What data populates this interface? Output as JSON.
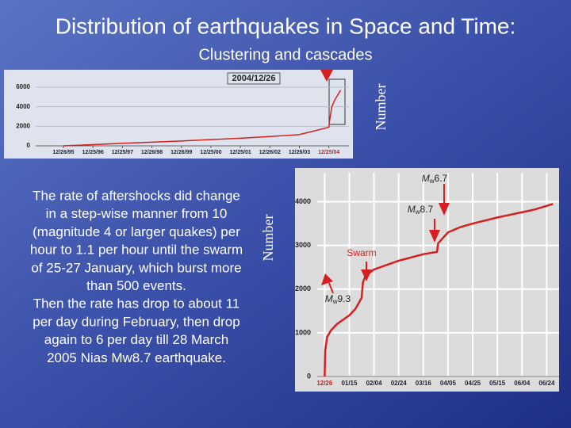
{
  "slide": {
    "title": "Distribution of earthquakes in Space and Time:",
    "subtitle": "Clustering and cascades",
    "body": [
      "The rate of aftershocks did change",
      "in a step-wise manner from 10",
      "(magnitude 4 or larger quakes) per",
      "hour to 1.1 per hour until the swarm",
      "of 25-27 January, which burst more",
      "than 500 events.",
      "Then the rate has drop to about 11",
      "per day during February, then drop",
      "again to 6 per day till 28 March",
      "2005 Nias Mw8.7 earthquake."
    ]
  },
  "chart_data": [
    {
      "type": "line",
      "y_label": "Number",
      "annotation": "2004/12/26",
      "color": "#d42020",
      "x": [
        0,
        1,
        2,
        3,
        4,
        5,
        6,
        7,
        8,
        9,
        9.02,
        9.1,
        9.2,
        9.4
      ],
      "series": [
        {
          "values": [
            0,
            120,
            260,
            380,
            500,
            640,
            780,
            950,
            1150,
            1900,
            2500,
            4000,
            4700,
            5700
          ]
        }
      ],
      "xlim": [
        -0.94,
        9.68
      ],
      "ylim": [
        0,
        6000
      ],
      "xticks": [
        {
          "value": 0,
          "label": "12/26/95"
        },
        {
          "value": 1,
          "label": "12/25/96"
        },
        {
          "value": 2,
          "label": "12/25/97"
        },
        {
          "value": 3,
          "label": "12/26/98"
        },
        {
          "value": 4,
          "label": "12/26/99"
        },
        {
          "value": 5,
          "label": "12/25/00"
        },
        {
          "value": 6,
          "label": "12/25/01"
        },
        {
          "value": 7,
          "label": "12/26/02"
        },
        {
          "value": 8,
          "label": "12/26/03"
        },
        {
          "value": 9,
          "label": "12/25/04"
        }
      ],
      "highlight_tick_color": "#d42020",
      "yticks": [
        0,
        2000,
        4000,
        6000
      ],
      "grid": true
    },
    {
      "type": "line",
      "y_label": "Number",
      "color": "#d42020",
      "x": [
        0,
        0.5,
        2,
        5,
        10,
        15,
        20,
        25,
        30,
        31,
        33,
        40,
        60,
        80,
        91,
        92,
        100,
        110,
        120,
        140,
        160,
        170,
        185
      ],
      "series": [
        {
          "values": [
            0,
            600,
            900,
            1050,
            1200,
            1300,
            1400,
            1550,
            1800,
            2150,
            2300,
            2450,
            2650,
            2800,
            2850,
            3050,
            3300,
            3420,
            3500,
            3640,
            3760,
            3820,
            3950
          ]
        }
      ],
      "xlim": [
        -6,
        190
      ],
      "ylim": [
        0,
        4300
      ],
      "xticks": [
        {
          "value": 0,
          "label": "12/26"
        },
        {
          "value": 20,
          "label": "01/15"
        },
        {
          "value": 40,
          "label": "02/04"
        },
        {
          "value": 60,
          "label": "02/24"
        },
        {
          "value": 80,
          "label": "03/16"
        },
        {
          "value": 100,
          "label": "04/05"
        },
        {
          "value": 120,
          "label": "04/25"
        },
        {
          "value": 140,
          "label": "05/15"
        },
        {
          "value": 160,
          "label": "06/04"
        },
        {
          "value": 180,
          "label": "06/24"
        }
      ],
      "highlight_tick_color": "#d42020",
      "yticks": [
        0,
        1000,
        2000,
        3000,
        4000
      ],
      "grid": true,
      "annotations": [
        {
          "m": "M",
          "w": "w",
          "mag": "6.7"
        },
        {
          "m": "M",
          "w": "w",
          "mag": "8.7"
        },
        {
          "text": "Swarm"
        },
        {
          "m": "M",
          "w": "w",
          "mag": "9.3"
        }
      ]
    }
  ]
}
